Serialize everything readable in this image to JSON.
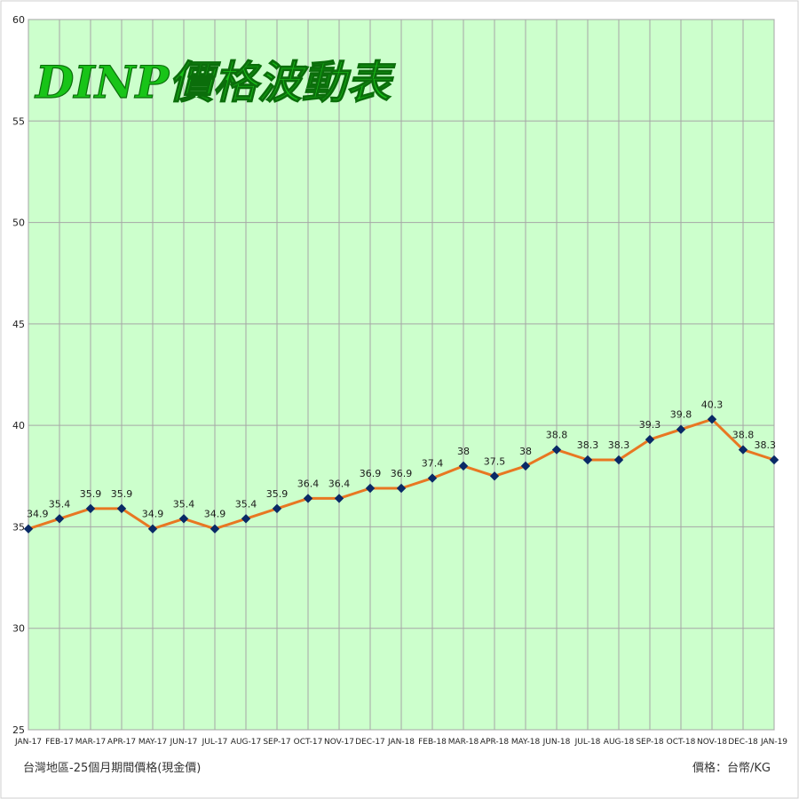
{
  "chart_data": {
    "type": "line",
    "title": "DINP價格波動表",
    "categories": [
      "JAN-17",
      "FEB-17",
      "MAR-17",
      "APR-17",
      "MAY-17",
      "JUN-17",
      "JUL-17",
      "AUG-17",
      "SEP-17",
      "OCT-17",
      "NOV-17",
      "DEC-17",
      "JAN-18",
      "FEB-18",
      "MAR-18",
      "APR-18",
      "MAY-18",
      "JUN-18",
      "JUL-18",
      "AUG-18",
      "SEP-18",
      "OCT-18",
      "NOV-18",
      "DEC-18",
      "JAN-19"
    ],
    "values": [
      34.9,
      35.4,
      35.9,
      35.9,
      34.9,
      35.4,
      34.9,
      35.4,
      35.9,
      36.4,
      36.4,
      36.9,
      36.9,
      37.4,
      38,
      37.5,
      38,
      38.8,
      38.3,
      38.3,
      39.3,
      39.8,
      40.3,
      38.8,
      38.3
    ],
    "data_labels": [
      "34.9",
      "35.4",
      "35.9",
      "35.9",
      "34.9",
      "35.4",
      "34.9",
      "35.4",
      "35.9",
      "36.4",
      "36.4",
      "36.9",
      "36.9",
      "37.4",
      "38",
      "37.5",
      "38",
      "38.8",
      "38.3",
      "38.3",
      "39.3",
      "39.8",
      "40.3",
      "38.8",
      "38.3"
    ],
    "ylim": [
      25,
      60
    ],
    "yticks": [
      "25",
      "30",
      "35",
      "40",
      "45",
      "50",
      "55",
      "60"
    ],
    "grid": true,
    "colors": {
      "plot_bg": "#ccffcc",
      "grid": "#a6a6a6",
      "line": "#e87722",
      "marker": "#0a2a66",
      "title_fill": "#18c418"
    }
  },
  "notes": {
    "left": "台灣地區-25個月期間價格(現金價)",
    "right": "價格：台幣/KG"
  }
}
